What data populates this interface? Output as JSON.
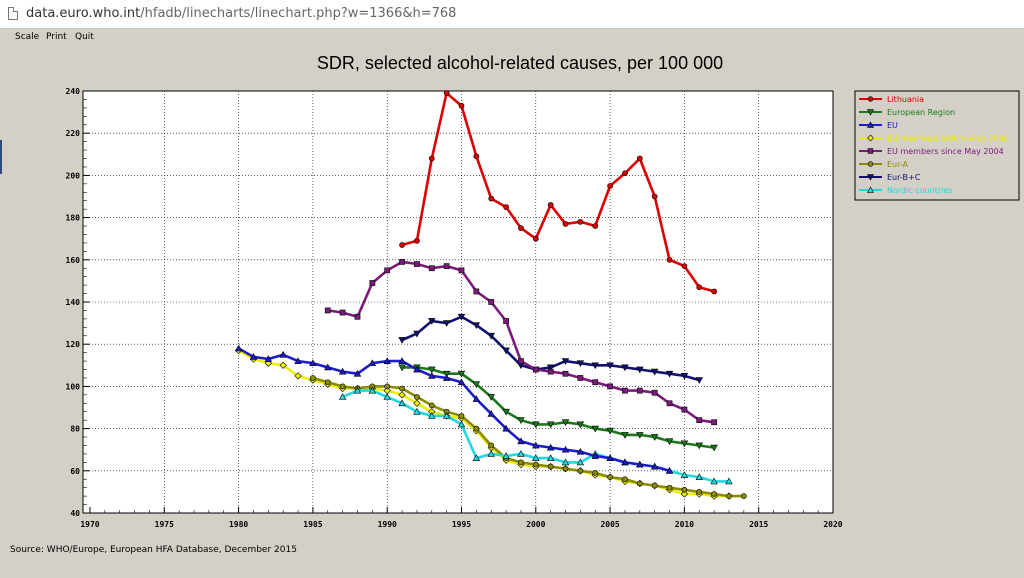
{
  "browser": {
    "url_host": "data.euro.who.int",
    "url_path": "/hfadb/linecharts/linechart.php?w=1366&h=768"
  },
  "menu": {
    "items": [
      "Scale",
      "Print",
      "Quit"
    ]
  },
  "source": "Source: WHO/Europe, European HFA Database, December 2015",
  "chart_data": {
    "type": "line",
    "title": "SDR, selected alcohol-related causes, per 100 000",
    "xlabel": "",
    "ylabel": "",
    "xlim": [
      1970,
      2020
    ],
    "ylim": [
      40,
      240
    ],
    "xticks": [
      1970,
      1975,
      1980,
      1985,
      1990,
      1995,
      2000,
      2005,
      2010,
      2015,
      2020
    ],
    "yticks": [
      40,
      60,
      80,
      100,
      120,
      140,
      160,
      180,
      200,
      220,
      240
    ],
    "grid": true,
    "legend_position": "top-right",
    "series": [
      {
        "name": "Lithuania",
        "color": "#dd0000",
        "marker": "circle",
        "x0": 1991,
        "values": [
          167,
          169,
          208,
          239,
          233,
          209,
          189,
          185,
          175,
          170,
          186,
          177,
          178,
          176,
          195,
          201,
          208,
          190,
          160,
          157,
          147,
          145
        ]
      },
      {
        "name": "European Region",
        "color": "#1a7a1a",
        "marker": "triangle-down",
        "x0": 1991,
        "values": [
          109,
          109,
          108,
          106,
          106,
          101,
          95,
          88,
          84,
          82,
          82,
          83,
          82,
          80,
          79,
          77,
          77,
          76,
          74,
          73,
          72,
          71
        ]
      },
      {
        "name": "EU",
        "color": "#1c1ccc",
        "marker": "triangle-up",
        "x0": 1980,
        "values": [
          118,
          114,
          113,
          115,
          112,
          111,
          109,
          107,
          106,
          111,
          112,
          112,
          108,
          105,
          104,
          102,
          94,
          87,
          80,
          74,
          72,
          71,
          70,
          69,
          67,
          66,
          64,
          63,
          62,
          60
        ]
      },
      {
        "name": "EU members before May 2004",
        "color": "#eeee00",
        "marker": "diamond",
        "x0": 1980,
        "values": [
          117,
          113,
          111,
          110,
          105,
          103,
          101,
          99,
          99,
          99,
          98,
          96,
          92,
          88,
          86,
          85,
          79,
          71,
          65,
          63,
          62,
          62,
          61,
          60,
          58,
          57,
          55,
          54,
          53,
          51,
          49,
          49,
          48,
          48
        ]
      },
      {
        "name": "EU members since May 2004",
        "color": "#7a1a7a",
        "marker": "square",
        "x0": 1986,
        "values": [
          136,
          135,
          133,
          149,
          155,
          159,
          158,
          156,
          157,
          155,
          145,
          140,
          131,
          112,
          108,
          107,
          106,
          104,
          102,
          100,
          98,
          98,
          97,
          92,
          89,
          84,
          83
        ]
      },
      {
        "name": "Eur-A",
        "color": "#8b8b00",
        "marker": "circle",
        "x0": 1985,
        "values": [
          104,
          102,
          100,
          99,
          100,
          100,
          99,
          95,
          91,
          88,
          86,
          80,
          72,
          66,
          64,
          63,
          62,
          61,
          60,
          59,
          57,
          56,
          54,
          53,
          52,
          51,
          50,
          49,
          48,
          48
        ]
      },
      {
        "name": "Eur-B+C",
        "color": "#101070",
        "marker": "triangle-down",
        "x0": 1991,
        "values": [
          122,
          125,
          131,
          130,
          133,
          129,
          124,
          117,
          110,
          108,
          109,
          112,
          111,
          110,
          110,
          109,
          108,
          107,
          106,
          105,
          103
        ]
      },
      {
        "name": "Nordic countries",
        "color": "#20d8e0",
        "marker": "triangle-up",
        "x0": 1987,
        "values": [
          95,
          98,
          98,
          95,
          92,
          88,
          86,
          86,
          82,
          66,
          68,
          67,
          68,
          66,
          66,
          64,
          64,
          68,
          66,
          64,
          63,
          62,
          60,
          58,
          57,
          55,
          55
        ]
      }
    ]
  }
}
